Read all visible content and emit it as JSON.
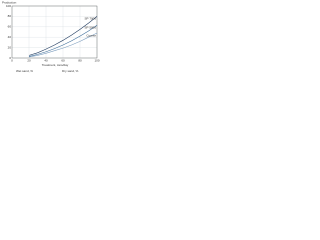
{
  "chart_data": {
    "type": "line",
    "y_label": "Production",
    "x_label": "Treatment, tons/day",
    "x": [
      20,
      30,
      40,
      50,
      60,
      70,
      80,
      90,
      100
    ],
    "series": [
      {
        "name": "SP 7000",
        "color": "#1f3a5f",
        "values": [
          5,
          10,
          17,
          25,
          34,
          44,
          55,
          67,
          80
        ]
      },
      {
        "name": "SP 5000",
        "color": "#3f6e9a",
        "values": [
          3,
          7,
          12,
          18,
          25,
          33,
          42,
          52,
          63
        ]
      },
      {
        "name": "Coarse",
        "color": "#7f9fbf",
        "values": [
          2,
          5,
          9,
          14,
          19,
          25,
          32,
          40,
          48
        ]
      }
    ],
    "annotations": [
      "Wet sand, %",
      "Dry sand, %"
    ],
    "xlim": [
      0,
      100
    ],
    "xticks": [
      0,
      20,
      40,
      60,
      80,
      100
    ],
    "ylim": [
      0,
      100
    ],
    "yticks": [
      0,
      20,
      40,
      60,
      80,
      100
    ],
    "grid": true
  }
}
